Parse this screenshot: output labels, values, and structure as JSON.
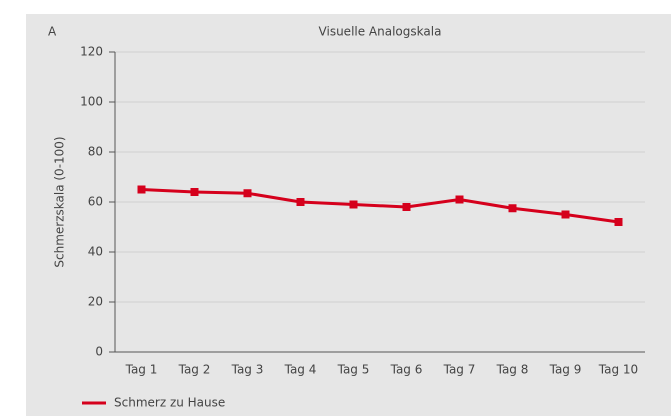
{
  "chart_data": {
    "type": "line",
    "label": "A",
    "title": "Visuelle Analogskala",
    "y_label": "Schmerzskala (0-100)",
    "categories": [
      "Tag 1",
      "Tag 2",
      "Tag 3",
      "Tag 4",
      "Tag 5",
      "Tag 6",
      "Tag 7",
      "Tag 8",
      "Tag 9",
      "Tag 10"
    ],
    "series": [
      {
        "name": "Schmerz zu Hause",
        "color": "#d5001c",
        "values": [
          65,
          64,
          63.5,
          60,
          59,
          58,
          61,
          57.5,
          55,
          52
        ]
      }
    ],
    "ylim": [
      0,
      120
    ],
    "yticks": [
      0,
      20,
      40,
      60,
      80,
      100,
      120
    ],
    "grid": true,
    "legend": "bottom-left"
  }
}
